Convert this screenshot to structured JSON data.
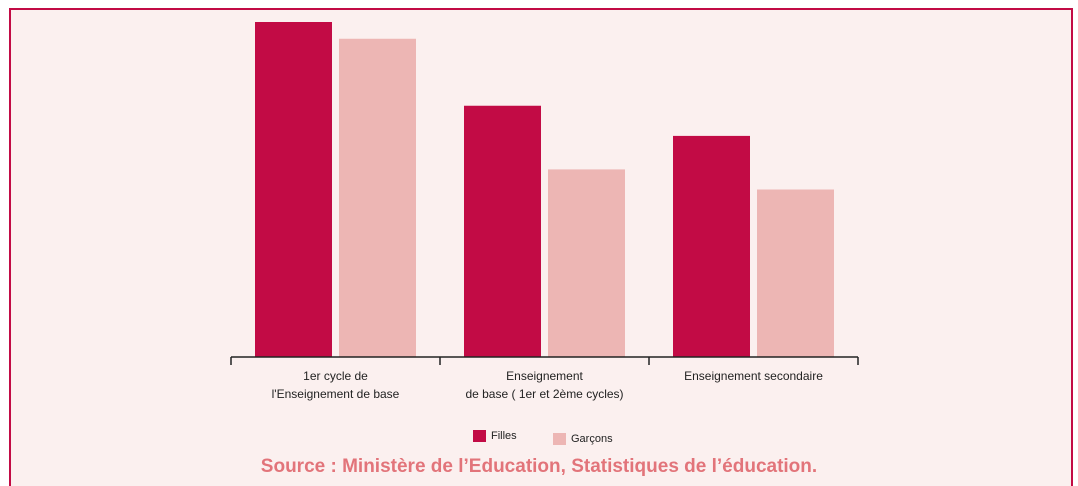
{
  "chart_data": {
    "type": "bar",
    "categories": [
      [
        "1er cycle de",
        "l'Enseignement de base"
      ],
      [
        "Enseignement",
        "de base ( 1er et 2ème cycles)"
      ],
      [
        "Enseignement secondaire"
      ]
    ],
    "series": [
      {
        "name": "Filles",
        "color": "#c20b45",
        "values": [
          100,
          75,
          66
        ]
      },
      {
        "name": "Garçons",
        "color": "#edb6b4",
        "values": [
          95,
          56,
          50
        ]
      }
    ],
    "ylim": [
      0,
      100
    ],
    "source": "Source : Ministère de l’Education, Statistiques de l’éducation."
  }
}
